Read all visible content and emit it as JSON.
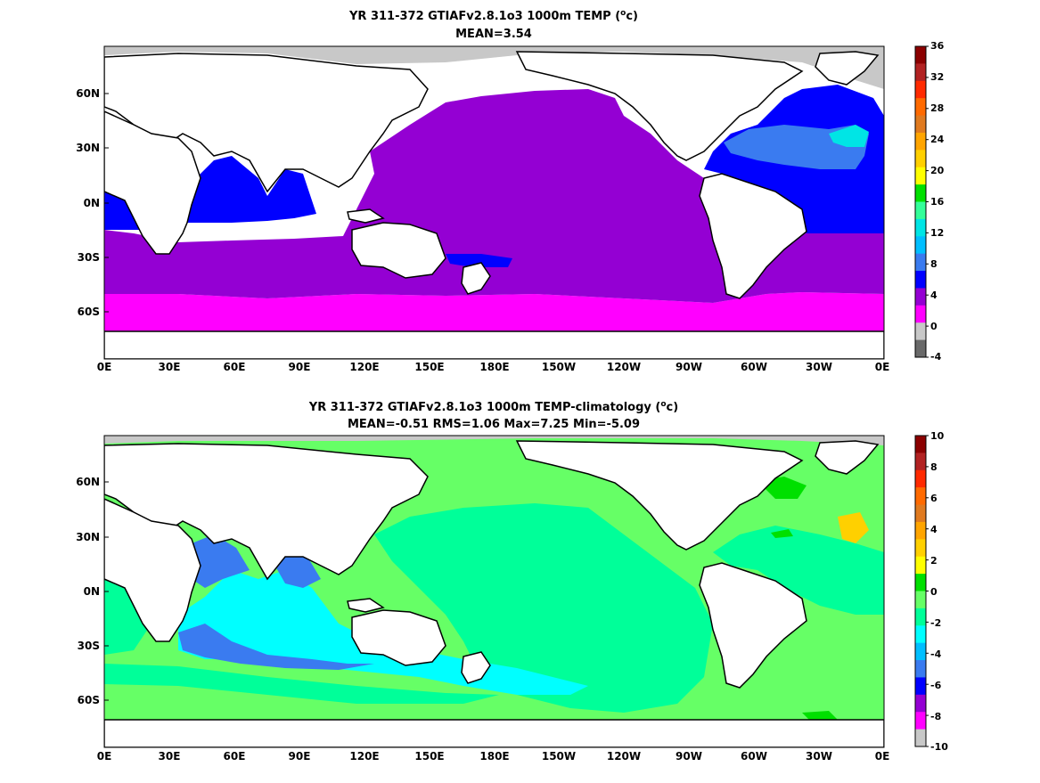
{
  "chart_data": [
    {
      "type": "heatmap",
      "title": "YR 311-372 GTIAFv2.8.1o3 1000m TEMP (°c)",
      "title_main": "YR 311-372 GTIAFv2.8.1o3 1000m TEMP (",
      "title_sup": "o",
      "title_unit": "c)",
      "subtitle": "MEAN=3.54",
      "x_tick_labels": [
        "0E",
        "30E",
        "60E",
        "90E",
        "120E",
        "150E",
        "180E",
        "150W",
        "120W",
        "90W",
        "60W",
        "30W",
        "0E"
      ],
      "y_tick_labels": [
        "60N",
        "30N",
        "0N",
        "30S",
        "60S"
      ],
      "xlim": [
        0,
        360
      ],
      "ylim": [
        -80,
        90
      ],
      "colorbar": {
        "tick_labels": [
          "36",
          "32",
          "28",
          "24",
          "20",
          "16",
          "12",
          "8",
          "4",
          "0",
          "-4"
        ],
        "levels": [
          -4,
          0,
          4,
          8,
          12,
          16,
          20,
          24,
          28,
          32,
          36
        ]
      }
    },
    {
      "type": "heatmap",
      "title": "YR 311-372 GTIAFv2.8.1o3 1000m TEMP-climatology (°c)",
      "title_main": "YR 311-372 GTIAFv2.8.1o3 1000m TEMP-climatology (",
      "title_sup": "o",
      "title_unit": "c)",
      "subtitle": "MEAN=-0.51   RMS=1.06   Max=7.25   Min=-5.09",
      "x_tick_labels": [
        "0E",
        "30E",
        "60E",
        "90E",
        "120E",
        "150E",
        "180E",
        "150W",
        "120W",
        "90W",
        "60W",
        "30W",
        "0E"
      ],
      "y_tick_labels": [
        "60N",
        "30N",
        "0N",
        "30S",
        "60S"
      ],
      "xlim": [
        0,
        360
      ],
      "ylim": [
        -80,
        90
      ],
      "colorbar": {
        "tick_labels": [
          "10",
          "8",
          "6",
          "4",
          "2",
          "0",
          "-2",
          "-4",
          "-6",
          "-8",
          "-10"
        ],
        "levels": [
          -10,
          -8,
          -6,
          -4,
          -2,
          0,
          2,
          4,
          6,
          8,
          10
        ]
      }
    }
  ],
  "colors": {
    "colorbar_top": [
      "#8b0000",
      "#b22222",
      "#ff2a00",
      "#ff6a00",
      "#e07a1f",
      "#ffa500",
      "#ffd000",
      "#ffff00",
      "#00e000",
      "#33ff99",
      "#00e5e5",
      "#00bfff",
      "#3a7bf0",
      "#0000ff",
      "#9400d3",
      "#ff00ff",
      "#c8c8c8",
      "#696969"
    ],
    "colorbar_bottom": [
      "#8b0000",
      "#b22222",
      "#ff2a00",
      "#ff6a00",
      "#e07a1f",
      "#ffa500",
      "#ffd000",
      "#ffff00",
      "#00e000",
      "#66ff66",
      "#00ff99",
      "#00ffff",
      "#00bfff",
      "#3a7bf0",
      "#0000ff",
      "#9400d3",
      "#ff00ff",
      "#c8c8c8"
    ],
    "land": "#ffffff",
    "coast": "#000000"
  }
}
